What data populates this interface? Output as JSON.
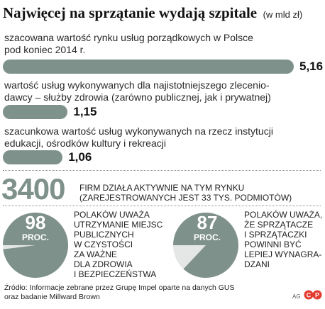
{
  "title": "Najwięcej na sprzątanie wydają szpitale",
  "title_unit": "(w mld zł)",
  "chart_data": [
    {
      "type": "bar",
      "orientation": "horizontal",
      "unit": "mld zł",
      "categories": [
        "szacowana wartość rynku usług porządkowych w Polsce pod koniec 2014 r.",
        "wartość usług wykonywanych dla najistotniejszego zleceniodawcy – służby zdrowia (zarówno publicznej, jak i prywatnej)",
        "szacunkowa wartość usług wykonywanych na rzecz instytucji edukacji, ośrodków kultury i rekreacji"
      ],
      "values": [
        5.16,
        1.15,
        1.06
      ],
      "value_labels": [
        "5,16",
        "1,15",
        "1,06"
      ],
      "xlim": [
        0,
        5.16
      ]
    },
    {
      "type": "pie",
      "label_big": "98",
      "label_small": "PROC.",
      "values": [
        98,
        2
      ],
      "colors": [
        "#7f918b",
        "#e4e7e6"
      ]
    },
    {
      "type": "pie",
      "label_big": "87",
      "label_small": "PROC.",
      "values": [
        87,
        13
      ],
      "colors": [
        "#7f918b",
        "#e4e7e6"
      ]
    }
  ],
  "bars": [
    {
      "desc_lines": [
        "szacowana wartość rynku usług porządkowych w Polsce",
        "pod koniec 2014 r."
      ]
    },
    {
      "desc_lines": [
        "wartość usług wykonywanych dla najistotniejszego zlecenio-",
        "dawcy – służby zdrowia (zarówno publicznej, jak i prywatnej)"
      ]
    },
    {
      "desc_lines": [
        "szacunkowa wartość usług wykonywanych na rzecz instytucji",
        "edukacji, ośrodków kultury i rekreacji"
      ]
    }
  ],
  "firms": {
    "number": "3400",
    "lines": [
      "FIRM DZIAŁA AKTYWNIE NA TYM RYNKU",
      "(ZAREJESTROWANYCH JEST 33 TYS. PODMIOTÓW)"
    ]
  },
  "pies": [
    {
      "text_lines": [
        "POLAKÓW UWAŻA",
        "UTRZYMANIE MIEJSC",
        "PUBLICZNYCH",
        "W CZYSTOŚCI",
        "ZA WAŻNE",
        "DLA ZDROWIA",
        "I BEZPIECZEŃSTWA"
      ]
    },
    {
      "text_lines": [
        "POLAKÓW UWAŻA,",
        "ŻE SPRZĄTACZE",
        "I SPRZĄTACZKI",
        "POWINNI BYĆ",
        "LEPIEJ WYNAGRA-",
        "DZANI"
      ]
    }
  ],
  "source_lines": [
    "Źródło: Informacje zebrane przez Grupę Impel oparte na danych GUS",
    "oraz badanie Millward Brown"
  ],
  "author": "AG",
  "logo_text": "©P",
  "colors": {
    "accent": "#7f918b",
    "pie_rest": "#e4e7e6"
  }
}
